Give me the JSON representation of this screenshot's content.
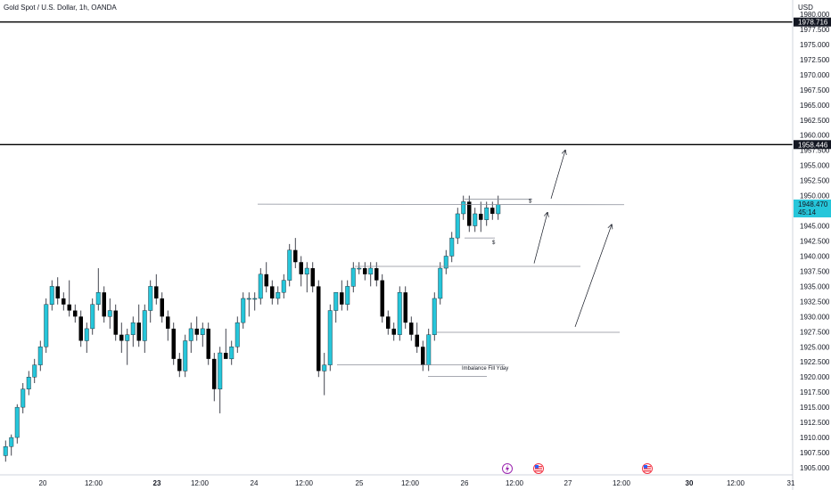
{
  "header": {
    "symbol": "Gold Spot / U.S. Dollar, 1h, OANDA",
    "currency": "USD"
  },
  "colors": {
    "bull": "#26c6da",
    "bear": "#000000",
    "line": "#000000",
    "grid_text": "#131722",
    "price_tag_bg": "#26c6da"
  },
  "chart_data": {
    "type": "candlestick",
    "ylim": [
      1903.5,
      1981.5
    ],
    "yticks": [
      "1980.000",
      "1977.500",
      "1975.000",
      "1972.500",
      "1970.000",
      "1967.500",
      "1965.000",
      "1962.500",
      "1960.000",
      "1957.500",
      "1955.000",
      "1952.500",
      "1950.000",
      "1947.500",
      "1945.000",
      "1942.500",
      "1940.000",
      "1937.500",
      "1935.000",
      "1932.500",
      "1930.000",
      "1927.500",
      "1925.000",
      "1922.500",
      "1920.000",
      "1917.500",
      "1915.000",
      "1912.500",
      "1910.000",
      "1907.500",
      "1905.000"
    ],
    "xticks": [
      {
        "label": "20",
        "bold": false
      },
      {
        "label": "12:00",
        "bold": false
      },
      {
        "label": "23",
        "bold": true
      },
      {
        "label": "12:00",
        "bold": false
      },
      {
        "label": "24",
        "bold": false
      },
      {
        "label": "12:00",
        "bold": false
      },
      {
        "label": "25",
        "bold": false
      },
      {
        "label": "12:00",
        "bold": false
      },
      {
        "label": "26",
        "bold": false
      },
      {
        "label": "12:00",
        "bold": false
      },
      {
        "label": "27",
        "bold": false
      },
      {
        "label": "12:00",
        "bold": false
      },
      {
        "label": "30",
        "bold": true
      },
      {
        "label": "12:00",
        "bold": false
      },
      {
        "label": "31",
        "bold": false
      }
    ],
    "candles": [
      [
        1907,
        1909.5,
        1906,
        1908.5
      ],
      [
        1908.5,
        1910.5,
        1907,
        1910
      ],
      [
        1910,
        1915.5,
        1909,
        1915
      ],
      [
        1915,
        1919,
        1914,
        1918
      ],
      [
        1918,
        1921,
        1917,
        1920
      ],
      [
        1920,
        1923,
        1919,
        1922
      ],
      [
        1922,
        1926,
        1921,
        1925
      ],
      [
        1925,
        1933,
        1924,
        1932
      ],
      [
        1932,
        1936,
        1931,
        1935
      ],
      [
        1935,
        1936.5,
        1932,
        1933
      ],
      [
        1933,
        1934,
        1931,
        1932
      ],
      [
        1932,
        1936,
        1930,
        1931
      ],
      [
        1931,
        1932,
        1929,
        1930
      ],
      [
        1930,
        1931,
        1925,
        1926
      ],
      [
        1926,
        1929,
        1924,
        1928
      ],
      [
        1928,
        1933,
        1927,
        1932
      ],
      [
        1932,
        1938,
        1931,
        1934
      ],
      [
        1934,
        1935,
        1929,
        1930
      ],
      [
        1930,
        1933,
        1928,
        1931
      ],
      [
        1931,
        1932,
        1926,
        1927
      ],
      [
        1927,
        1929,
        1924,
        1926
      ],
      [
        1926,
        1928,
        1922,
        1927
      ],
      [
        1927,
        1930,
        1925,
        1929
      ],
      [
        1929,
        1932,
        1925,
        1926
      ],
      [
        1926,
        1932,
        1924,
        1931
      ],
      [
        1931,
        1936,
        1929,
        1935
      ],
      [
        1935,
        1937,
        1932,
        1933
      ],
      [
        1933,
        1934,
        1929,
        1930
      ],
      [
        1930,
        1931,
        1926,
        1928
      ],
      [
        1928,
        1929,
        1922,
        1923
      ],
      [
        1923,
        1924,
        1920,
        1921
      ],
      [
        1921,
        1927,
        1920,
        1926
      ],
      [
        1926,
        1929,
        1924,
        1928
      ],
      [
        1928,
        1930,
        1926,
        1927
      ],
      [
        1927,
        1929,
        1925,
        1928
      ],
      [
        1928,
        1929,
        1922,
        1923
      ],
      [
        1923,
        1924,
        1916,
        1918
      ],
      [
        1918,
        1925,
        1914,
        1924
      ],
      [
        1924,
        1928,
        1923,
        1923
      ],
      [
        1923,
        1926,
        1922,
        1925
      ],
      [
        1925,
        1930,
        1924,
        1929
      ],
      [
        1929,
        1934,
        1928,
        1933
      ],
      [
        1933,
        1934,
        1930,
        1933
      ],
      [
        1933,
        1934,
        1931,
        1933
      ],
      [
        1933,
        1938,
        1932,
        1937
      ],
      [
        1937,
        1939,
        1934,
        1935
      ],
      [
        1935,
        1936,
        1932,
        1933
      ],
      [
        1933,
        1935,
        1932,
        1934
      ],
      [
        1934,
        1937,
        1933,
        1936
      ],
      [
        1936,
        1942,
        1935,
        1941
      ],
      [
        1941,
        1943,
        1938,
        1939
      ],
      [
        1939,
        1940,
        1935,
        1937
      ],
      [
        1937,
        1939,
        1934,
        1938
      ],
      [
        1938,
        1939,
        1934,
        1935
      ],
      [
        1935,
        1936,
        1920,
        1921
      ],
      [
        1921,
        1924,
        1917,
        1922
      ],
      [
        1922,
        1932,
        1921,
        1931
      ],
      [
        1931,
        1934,
        1929,
        1934
      ],
      [
        1934,
        1936,
        1931,
        1932
      ],
      [
        1932,
        1936,
        1931,
        1935
      ],
      [
        1935,
        1939,
        1934,
        1938
      ],
      [
        1938,
        1939,
        1937,
        1938
      ],
      [
        1938,
        1939,
        1936,
        1937
      ],
      [
        1937,
        1939,
        1935,
        1938
      ],
      [
        1938,
        1939,
        1935,
        1936
      ],
      [
        1936,
        1937,
        1929,
        1930
      ],
      [
        1930,
        1931,
        1927,
        1928
      ],
      [
        1928,
        1929,
        1926,
        1927
      ],
      [
        1927,
        1935,
        1926,
        1934
      ],
      [
        1934,
        1935,
        1928,
        1929
      ],
      [
        1929,
        1930,
        1926,
        1927
      ],
      [
        1927,
        1929,
        1924,
        1925
      ],
      [
        1925,
        1926,
        1921,
        1922
      ],
      [
        1922,
        1928,
        1921,
        1927
      ],
      [
        1927,
        1934,
        1926,
        1933
      ],
      [
        1933,
        1939,
        1932,
        1938
      ],
      [
        1938,
        1941,
        1937,
        1940
      ],
      [
        1940,
        1944,
        1939,
        1943
      ],
      [
        1943,
        1948,
        1942,
        1947
      ],
      [
        1947,
        1950,
        1946,
        1949
      ],
      [
        1949,
        1950,
        1944,
        1945
      ],
      [
        1945,
        1948,
        1944,
        1947
      ],
      [
        1947,
        1949,
        1944,
        1946
      ],
      [
        1946,
        1949,
        1945,
        1948
      ],
      [
        1948,
        1949,
        1946,
        1947
      ],
      [
        1947,
        1950,
        1946,
        1948.5
      ]
    ],
    "levels": [
      {
        "price": 1978.716,
        "label": "1978.716"
      },
      {
        "price": 1958.446,
        "label": "1958.446"
      }
    ],
    "current_price": {
      "price": 1948.47,
      "label": "1948.470",
      "countdown": "45:14"
    },
    "annotations": {
      "imbalance_label": "Imbalance Fill Yday",
      "dollar_marks": [
        "$",
        "$"
      ]
    }
  }
}
